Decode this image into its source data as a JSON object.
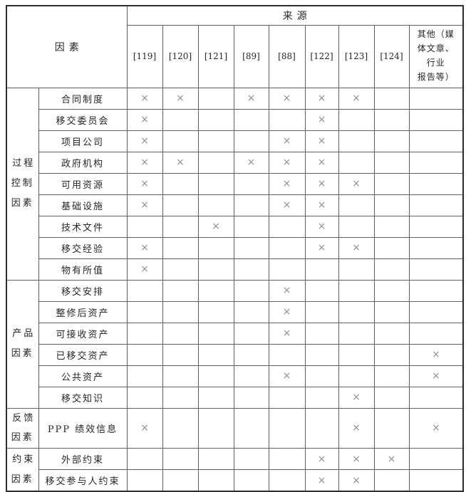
{
  "table": {
    "factor_header": "因素",
    "source_header": "来源",
    "mark_symbol": "×",
    "colors": {
      "outer_border": "#2e2e2e",
      "inner_border": "#5f5f5f",
      "text": "#262626",
      "mark": "#8f8f8f"
    },
    "sources": [
      "[119]",
      "[120]",
      "[121]",
      "[89]",
      "[88]",
      "[122]",
      "[123]",
      "[124]",
      "其他（媒\n体文章、\n行业\n报告等）"
    ],
    "groups": [
      {
        "label": "过程\n控制\n因素",
        "rows": [
          {
            "name": "合同制度",
            "marks": [
              0,
              1,
              3,
              4,
              5,
              6
            ]
          },
          {
            "name": "移交委员会",
            "marks": [
              0,
              5
            ]
          },
          {
            "name": "项目公司",
            "marks": [
              0,
              4,
              5
            ]
          },
          {
            "name": "政府机构",
            "marks": [
              0,
              1,
              3,
              4,
              5
            ]
          },
          {
            "name": "可用资源",
            "marks": [
              0,
              4,
              5,
              6
            ]
          },
          {
            "name": "基础设施",
            "marks": [
              0,
              4,
              5
            ]
          },
          {
            "name": "技术文件",
            "marks": [
              2,
              5
            ]
          },
          {
            "name": "移交经验",
            "marks": [
              0,
              5,
              6
            ]
          },
          {
            "name": "物有所值",
            "marks": [
              0
            ]
          }
        ]
      },
      {
        "label": "产品\n因素",
        "rows": [
          {
            "name": "移交安排",
            "marks": [
              4
            ]
          },
          {
            "name": "整修后资产",
            "marks": [
              4
            ]
          },
          {
            "name": "可接收资产",
            "marks": [
              4
            ]
          },
          {
            "name": "已移交资产",
            "marks": [
              8
            ]
          },
          {
            "name": "公共资产",
            "marks": [
              4,
              8
            ]
          },
          {
            "name": "移交知识",
            "marks": [
              6
            ]
          }
        ]
      },
      {
        "label": "反馈\n因素",
        "rows": [
          {
            "name": "PPP 绩效信息",
            "marks": [
              0,
              6,
              8
            ],
            "tall": true
          }
        ]
      },
      {
        "label": "约束\n因素",
        "rows": [
          {
            "name": "外部约束",
            "marks": [
              5,
              6,
              7
            ]
          },
          {
            "name": "移交参与人约束",
            "marks": [
              5,
              6
            ]
          }
        ]
      }
    ]
  }
}
